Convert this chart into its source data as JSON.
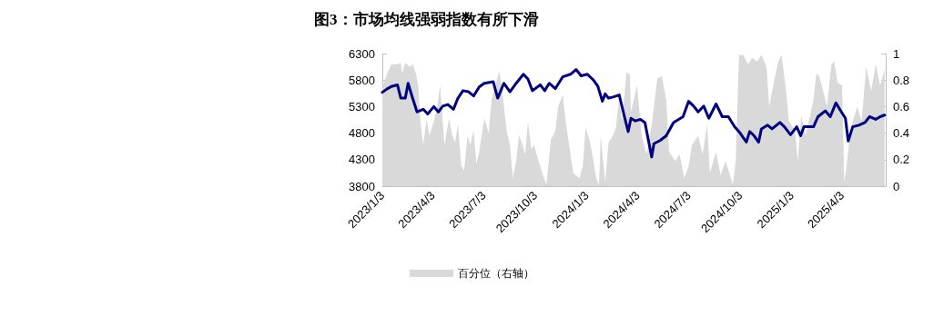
{
  "chart_data": {
    "type": "line",
    "title": "图3：市场均线强弱指数有所下滑",
    "legend": "bottom",
    "grid": false,
    "xlim": [
      "2023-01-03",
      "2025-06-20"
    ],
    "xticks": [
      {
        "value": "2023-01-03",
        "label": "2023/1/3"
      },
      {
        "value": "2023-04-03",
        "label": "2023/4/3"
      },
      {
        "value": "2023-07-03",
        "label": "2023/7/3"
      },
      {
        "value": "2023-10-03",
        "label": "2023/10/3"
      },
      {
        "value": "2024-01-03",
        "label": "2024/1/3"
      },
      {
        "value": "2024-04-03",
        "label": "2024/4/3"
      },
      {
        "value": "2024-07-03",
        "label": "2024/7/3"
      },
      {
        "value": "2024-10-03",
        "label": "2024/10/3"
      },
      {
        "value": "2025-01-03",
        "label": "2025/1/3"
      },
      {
        "value": "2025-04-03",
        "label": "2025/4/3"
      }
    ],
    "ylim": [
      3800,
      6300
    ],
    "yticks": [
      3800,
      4300,
      4800,
      5300,
      5800,
      6300
    ],
    "y2lim": [
      0,
      1
    ],
    "y2ticks": [
      0,
      0.2,
      0.4,
      0.6,
      0.8,
      1
    ],
    "series": [
      {
        "name": "百分位（右轴）",
        "type": "area",
        "axis": "y2",
        "color": "#d9d9d9",
        "x": [
          "2023-01-03",
          "2023-01-11",
          "2023-01-19",
          "2023-01-30",
          "2023-02-05",
          "2023-02-07",
          "2023-02-13",
          "2023-02-21",
          "2023-02-26",
          "2023-03-04",
          "2023-03-08",
          "2023-03-12",
          "2023-03-17",
          "2023-03-23",
          "2023-03-28",
          "2023-04-05",
          "2023-04-11",
          "2023-04-16",
          "2023-04-19",
          "2023-04-24",
          "2023-05-02",
          "2023-05-08",
          "2023-05-13",
          "2023-05-18",
          "2023-05-24",
          "2023-05-29",
          "2023-06-04",
          "2023-06-09",
          "2023-06-15",
          "2023-06-20",
          "2023-06-25",
          "2023-07-04",
          "2023-07-12",
          "2023-07-17",
          "2023-07-25",
          "2023-07-31",
          "2023-08-05",
          "2023-08-13",
          "2023-08-19",
          "2023-08-24",
          "2023-08-30",
          "2023-09-04",
          "2023-09-09",
          "2023-09-15",
          "2023-09-20",
          "2023-09-26",
          "2023-10-01",
          "2023-10-09",
          "2023-10-17",
          "2023-10-23",
          "2023-10-31",
          "2023-11-08",
          "2023-11-13",
          "2023-11-21",
          "2023-11-27",
          "2023-12-05",
          "2023-12-10",
          "2023-12-21",
          "2023-12-27",
          "2024-01-01",
          "2024-01-09",
          "2024-01-15",
          "2024-01-20",
          "2024-01-25",
          "2024-01-28",
          "2024-02-05",
          "2024-02-11",
          "2024-02-19",
          "2024-02-24",
          "2024-03-01",
          "2024-03-06",
          "2024-03-14",
          "2024-03-20",
          "2024-03-22",
          "2024-04-02",
          "2024-04-10",
          "2024-04-19",
          "2024-04-29",
          "2024-05-08",
          "2024-05-16",
          "2024-05-24",
          "2024-05-29",
          "2024-06-09",
          "2024-06-17",
          "2024-06-25",
          "2024-07-03",
          "2024-07-09",
          "2024-07-20",
          "2024-07-28",
          "2024-08-05",
          "2024-08-10",
          "2024-08-21",
          "2024-08-29",
          "2024-09-07",
          "2024-09-15",
          "2024-09-20",
          "2024-09-25",
          "2024-10-01",
          "2024-10-09",
          "2024-10-17",
          "2024-10-25",
          "2024-11-02",
          "2024-11-10",
          "2024-11-19",
          "2024-11-24",
          "2024-12-02",
          "2024-12-10",
          "2024-12-16",
          "2024-12-24",
          "2024-12-29",
          "2025-01-09",
          "2025-01-14",
          "2025-01-20",
          "2025-01-28",
          "2025-02-11",
          "2025-02-16",
          "2025-02-21",
          "2025-02-27",
          "2025-03-07",
          "2025-03-15",
          "2025-03-20",
          "2025-03-26",
          "2025-04-03",
          "2025-04-07",
          "2025-04-11",
          "2025-04-17",
          "2025-04-22",
          "2025-04-30",
          "2025-05-08",
          "2025-05-16",
          "2025-05-25",
          "2025-06-02",
          "2025-06-10",
          "2025-06-18"
        ],
        "values": [
          0.74,
          0.84,
          0.92,
          0.92,
          0.93,
          0.85,
          0.93,
          0.9,
          0.92,
          0.85,
          0.76,
          0.49,
          0.31,
          0.51,
          0.38,
          0.49,
          0.6,
          0.76,
          0.6,
          0.31,
          0.51,
          0.38,
          0.33,
          0.47,
          0.15,
          0.12,
          0.38,
          0.31,
          0.42,
          0.17,
          0.26,
          0.51,
          0.4,
          0.65,
          0.78,
          0.87,
          0.72,
          0.42,
          0.31,
          0.06,
          0.19,
          0.38,
          0.33,
          0.24,
          0.49,
          0.28,
          0.31,
          0.19,
          0.08,
          0.01,
          0.35,
          0.42,
          0.6,
          0.69,
          0.47,
          0.24,
          0.1,
          0.06,
          0.15,
          0.44,
          0.33,
          0.19,
          0.06,
          0.01,
          0.38,
          0.03,
          0.33,
          0.38,
          0.44,
          0.65,
          0.49,
          0.86,
          0.84,
          0.56,
          0.76,
          0.38,
          0.24,
          0.49,
          0.81,
          0.83,
          0.65,
          0.26,
          0.19,
          0.24,
          0.06,
          0.15,
          0.31,
          0.38,
          0.24,
          0.47,
          0.1,
          0.26,
          0.08,
          0.19,
          0.08,
          0.01,
          0.19,
          0.99,
          0.99,
          0.92,
          0.97,
          0.94,
          0.99,
          0.9,
          0.6,
          0.78,
          0.94,
          0.99,
          0.72,
          0.49,
          0.42,
          0.19,
          0.53,
          0.38,
          0.65,
          0.85,
          0.83,
          0.74,
          0.6,
          0.92,
          0.94,
          0.78,
          0.76,
          0.03,
          0.15,
          0.38,
          0.49,
          0.6,
          0.49,
          0.9,
          0.72,
          0.92,
          0.76,
          0.88
        ]
      },
      {
        "color": "#000080",
        "x": [
          "2023-01-03",
          "2023-01-11",
          "2023-01-19",
          "2023-01-30",
          "2023-02-05",
          "2023-02-13",
          "2023-02-18",
          "2023-02-26",
          "2023-03-06",
          "2023-03-17",
          "2023-03-25",
          "2023-04-05",
          "2023-04-13",
          "2023-04-21",
          "2023-04-30",
          "2023-05-10",
          "2023-05-18",
          "2023-05-27",
          "2023-06-06",
          "2023-06-15",
          "2023-06-25",
          "2023-07-04",
          "2023-07-20",
          "2023-07-28",
          "2023-08-08",
          "2023-08-19",
          "2023-08-30",
          "2023-09-12",
          "2023-09-20",
          "2023-09-28",
          "2023-10-12",
          "2023-10-20",
          "2023-10-28",
          "2023-11-08",
          "2023-11-21",
          "2023-12-05",
          "2023-12-15",
          "2023-12-24",
          "2024-01-04",
          "2024-01-15",
          "2024-01-23",
          "2024-01-31",
          "2024-02-05",
          "2024-02-11",
          "2024-02-19",
          "2024-03-01",
          "2024-03-09",
          "2024-03-17",
          "2024-03-22",
          "2024-03-30",
          "2024-04-08",
          "2024-04-16",
          "2024-04-28",
          "2024-05-02",
          "2024-05-13",
          "2024-05-24",
          "2024-06-06",
          "2024-06-23",
          "2024-07-03",
          "2024-07-12",
          "2024-07-20",
          "2024-07-30",
          "2024-08-08",
          "2024-08-21",
          "2024-09-01",
          "2024-09-12",
          "2024-09-23",
          "2024-10-03",
          "2024-10-14",
          "2024-10-20",
          "2024-10-28",
          "2024-11-05",
          "2024-11-10",
          "2024-11-21",
          "2024-11-29",
          "2024-12-13",
          "2024-12-21",
          "2025-01-01",
          "2025-01-12",
          "2025-01-19",
          "2025-01-25",
          "2025-02-11",
          "2025-02-19",
          "2025-03-04",
          "2025-03-13",
          "2025-03-23",
          "2025-03-31",
          "2025-04-09",
          "2025-04-14",
          "2025-04-22",
          "2025-05-03",
          "2025-05-14",
          "2025-05-22",
          "2025-06-02",
          "2025-06-10",
          "2025-06-18"
        ],
        "values": [
          5570,
          5630,
          5680,
          5710,
          5460,
          5460,
          5740,
          5460,
          5200,
          5250,
          5160,
          5300,
          5200,
          5310,
          5340,
          5250,
          5460,
          5600,
          5580,
          5500,
          5670,
          5740,
          5770,
          5460,
          5740,
          5580,
          5740,
          5910,
          5820,
          5600,
          5710,
          5600,
          5740,
          5640,
          5860,
          5910,
          6000,
          5880,
          5910,
          5800,
          5680,
          5400,
          5540,
          5460,
          5480,
          5520,
          5170,
          4830,
          5080,
          5030,
          5060,
          5000,
          4350,
          4600,
          4660,
          4750,
          5000,
          5110,
          5400,
          5310,
          5200,
          5310,
          5080,
          5350,
          5110,
          5110,
          4920,
          4800,
          4630,
          4830,
          4750,
          4630,
          4880,
          4950,
          4880,
          5000,
          4920,
          4770,
          4920,
          4750,
          4920,
          4920,
          5110,
          5220,
          5110,
          5370,
          5230,
          5080,
          4650,
          4920,
          4950,
          5000,
          5110,
          5060,
          5110,
          5140
        ]
      }
    ]
  }
}
